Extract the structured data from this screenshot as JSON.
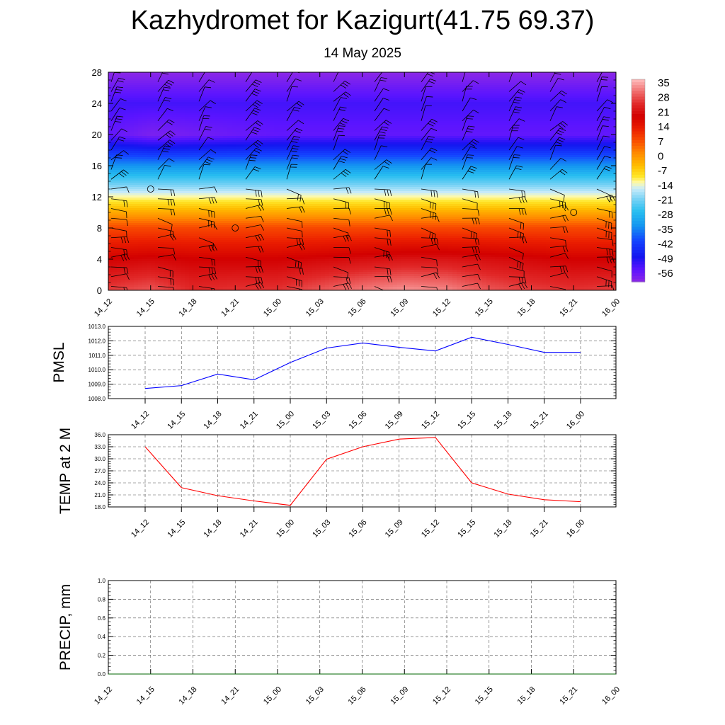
{
  "title": "Kazhydromet for Kazigurt(41.75 69.37)",
  "subtitle": "14 May 2025",
  "colors": {
    "pmsl_line": "#0000ff",
    "temp_line": "#ff0000",
    "precip_line": "#006400",
    "wind_barb": "#000000"
  },
  "chart_data": [
    {
      "id": "crosssection",
      "type": "heatmap",
      "title": "",
      "xlabel": "",
      "ylabel": "",
      "categories": [
        "14_12",
        "14_15",
        "14_18",
        "14_21",
        "15_00",
        "15_03",
        "15_06",
        "15_09",
        "15_12",
        "15_15",
        "15_18",
        "15_21",
        "16_00"
      ],
      "ylim": [
        0,
        28
      ],
      "y_ticks": [
        "0",
        "4",
        "8",
        "12",
        "16",
        "20",
        "24",
        "28"
      ],
      "y": [
        0,
        4,
        8,
        12,
        16,
        20,
        24,
        28
      ],
      "values": [
        [
          28,
          30,
          26,
          27,
          27,
          30,
          33,
          35,
          34,
          30,
          28,
          27,
          28
        ],
        [
          20,
          21,
          20,
          20,
          20,
          21,
          22,
          23,
          23,
          22,
          21,
          20,
          20
        ],
        [
          9,
          9,
          9,
          9,
          9,
          9,
          9,
          9,
          9,
          9,
          9,
          9,
          9
        ],
        [
          -12,
          -12,
          -12,
          -12,
          -12,
          -12,
          -12,
          -12,
          -12,
          -12,
          -12,
          -12,
          -12
        ],
        [
          -33,
          -33,
          -33,
          -33,
          -33,
          -33,
          -33,
          -33,
          -33,
          -33,
          -33,
          -33,
          -33
        ],
        [
          -55,
          -58,
          -57,
          -56,
          -55,
          -55,
          -55,
          -55,
          -55,
          -55,
          -55,
          -55,
          -55
        ],
        [
          -52,
          -52,
          -52,
          -52,
          -52,
          -52,
          -52,
          -52,
          -52,
          -52,
          -52,
          -52,
          -52
        ],
        [
          -60,
          -60,
          -60,
          -60,
          -60,
          -60,
          -60,
          -60,
          -60,
          -60,
          -60,
          -60,
          -60
        ]
      ],
      "colorbar": {
        "labels": [
          "35",
          "28",
          "21",
          "14",
          "7",
          "0",
          "-7",
          "-14",
          "-21",
          "-28",
          "-35",
          "-42",
          "-49",
          "-56"
        ],
        "range": [
          -60,
          38
        ]
      },
      "calm_markers": [
        {
          "time": "14_15",
          "level": 13
        },
        {
          "time": "14_21",
          "level": 8
        },
        {
          "time": "15_21",
          "level": 10
        }
      ]
    },
    {
      "id": "pmsl",
      "type": "line",
      "ylabel": "PMSL",
      "categories": [
        "14_12",
        "14_15",
        "14_18",
        "14_21",
        "15_00",
        "15_03",
        "15_06",
        "15_09",
        "15_12",
        "15_15",
        "15_18",
        "15_21",
        "16_00"
      ],
      "ylim": [
        1008.0,
        1013.0
      ],
      "y_ticks": [
        "1008.0",
        "1009.0",
        "1010.0",
        "1011.0",
        "1012.0",
        "1013.0"
      ],
      "series": [
        {
          "values": [
            1008.7,
            1008.9,
            1009.7,
            1009.3,
            1010.5,
            1011.5,
            1011.85,
            1011.55,
            1011.3,
            1012.25,
            1011.75,
            1011.2,
            1011.2
          ]
        }
      ],
      "grid": true
    },
    {
      "id": "temp",
      "type": "line",
      "ylabel": "TEMP at 2 M",
      "categories": [
        "14_12",
        "14_15",
        "14_18",
        "14_21",
        "15_00",
        "15_03",
        "15_06",
        "15_09",
        "15_12",
        "15_15",
        "15_18",
        "15_21",
        "16_00"
      ],
      "ylim": [
        18.0,
        36.0
      ],
      "y_ticks": [
        "18.0",
        "21.0",
        "24.0",
        "27.0",
        "30.0",
        "33.0",
        "36.0"
      ],
      "series": [
        {
          "values": [
            33.0,
            22.8,
            20.8,
            19.5,
            18.4,
            29.9,
            33.0,
            34.9,
            35.3,
            24.0,
            21.2,
            19.8,
            19.3
          ]
        }
      ],
      "grid": true
    },
    {
      "id": "precip",
      "type": "line",
      "ylabel": "PRECIP, mm",
      "categories": [
        "14_12",
        "14_15",
        "14_18",
        "14_21",
        "15_00",
        "15_03",
        "15_06",
        "15_09",
        "15_12",
        "15_15",
        "15_18",
        "15_21",
        "16_00"
      ],
      "ylim": [
        0.0,
        1.0
      ],
      "y_ticks": [
        "0.0",
        "0.2",
        "0.4",
        "0.6",
        "0.8",
        "1.0"
      ],
      "series": [
        {
          "values": [
            0,
            0,
            0,
            0,
            0,
            0,
            0,
            0,
            0,
            0,
            0,
            0,
            0
          ]
        }
      ],
      "grid": true
    }
  ]
}
